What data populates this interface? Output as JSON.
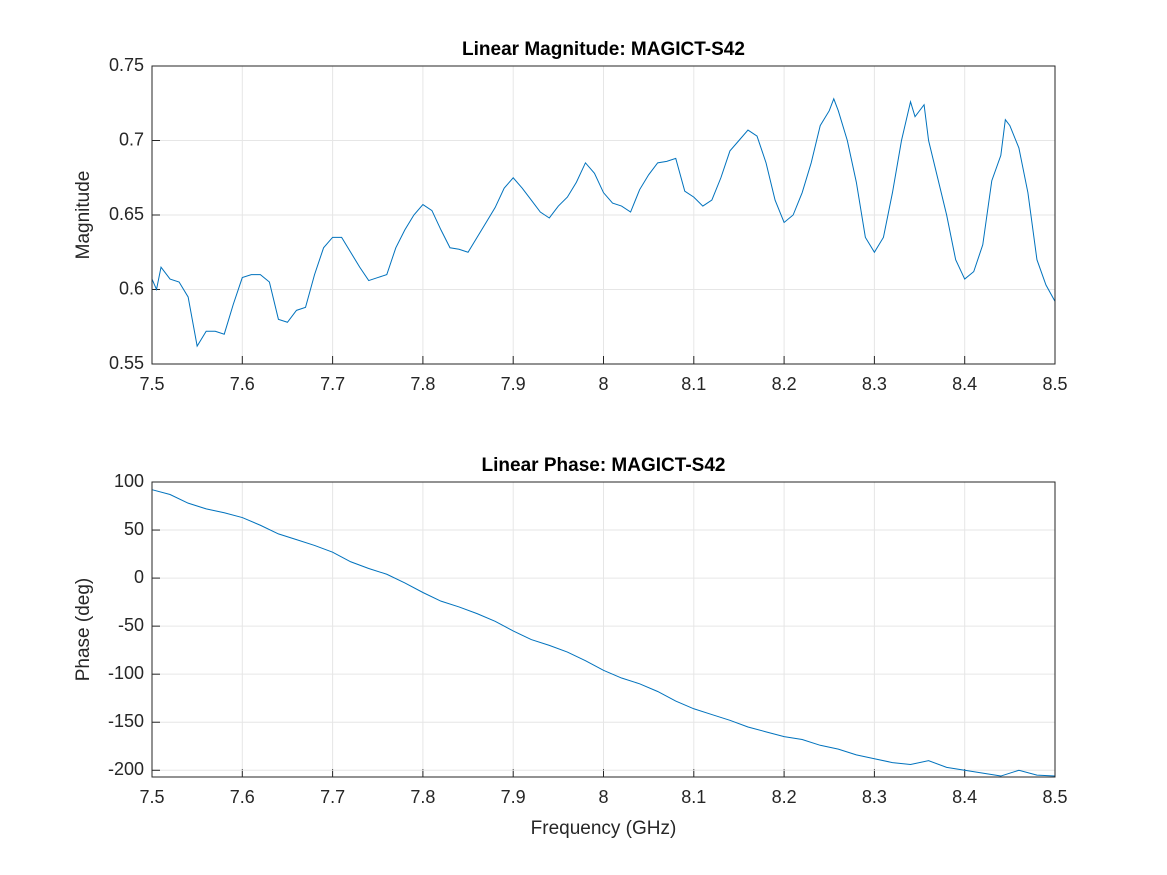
{
  "chart_data": [
    {
      "type": "line",
      "title": "Linear Magnitude: MAGICT-S42",
      "ylabel": "Magnitude",
      "color": "#0072bd",
      "grid": true,
      "x": [
        7.5,
        7.505,
        7.51,
        7.52,
        7.53,
        7.54,
        7.55,
        7.56,
        7.57,
        7.58,
        7.59,
        7.6,
        7.61,
        7.62,
        7.63,
        7.64,
        7.65,
        7.66,
        7.67,
        7.68,
        7.69,
        7.7,
        7.71,
        7.72,
        7.73,
        7.74,
        7.75,
        7.76,
        7.77,
        7.78,
        7.79,
        7.8,
        7.81,
        7.82,
        7.83,
        7.84,
        7.85,
        7.86,
        7.87,
        7.88,
        7.89,
        7.9,
        7.91,
        7.92,
        7.93,
        7.94,
        7.95,
        7.96,
        7.97,
        7.98,
        7.99,
        8.0,
        8.01,
        8.02,
        8.03,
        8.04,
        8.05,
        8.06,
        8.07,
        8.08,
        8.09,
        8.1,
        8.11,
        8.12,
        8.13,
        8.14,
        8.15,
        8.16,
        8.17,
        8.18,
        8.19,
        8.2,
        8.21,
        8.22,
        8.23,
        8.24,
        8.25,
        8.255,
        8.26,
        8.27,
        8.28,
        8.29,
        8.3,
        8.31,
        8.32,
        8.33,
        8.34,
        8.345,
        8.355,
        8.36,
        8.37,
        8.38,
        8.39,
        8.4,
        8.41,
        8.42,
        8.43,
        8.44,
        8.445,
        8.45,
        8.46,
        8.47,
        8.48,
        8.49,
        8.5
      ],
      "values": [
        0.607,
        0.6,
        0.615,
        0.607,
        0.605,
        0.595,
        0.562,
        0.572,
        0.572,
        0.57,
        0.59,
        0.608,
        0.61,
        0.61,
        0.605,
        0.58,
        0.578,
        0.586,
        0.588,
        0.61,
        0.628,
        0.635,
        0.635,
        0.625,
        0.615,
        0.606,
        0.608,
        0.61,
        0.628,
        0.64,
        0.65,
        0.657,
        0.653,
        0.64,
        0.628,
        0.627,
        0.625,
        0.635,
        0.645,
        0.655,
        0.668,
        0.675,
        0.668,
        0.66,
        0.652,
        0.648,
        0.656,
        0.662,
        0.672,
        0.685,
        0.678,
        0.665,
        0.658,
        0.656,
        0.652,
        0.667,
        0.677,
        0.685,
        0.686,
        0.688,
        0.666,
        0.662,
        0.656,
        0.66,
        0.675,
        0.693,
        0.7,
        0.707,
        0.703,
        0.685,
        0.66,
        0.645,
        0.65,
        0.665,
        0.685,
        0.71,
        0.72,
        0.728,
        0.72,
        0.7,
        0.672,
        0.635,
        0.625,
        0.635,
        0.665,
        0.7,
        0.726,
        0.716,
        0.724,
        0.7,
        0.675,
        0.65,
        0.62,
        0.607,
        0.612,
        0.63,
        0.673,
        0.69,
        0.714,
        0.71,
        0.695,
        0.665,
        0.62,
        0.603,
        0.592
      ],
      "xlim": [
        7.5,
        8.5
      ],
      "xticks": [
        7.5,
        7.6,
        7.7,
        7.8,
        7.9,
        8,
        8.1,
        8.2,
        8.3,
        8.4,
        8.5
      ],
      "ylim": [
        0.55,
        0.75
      ],
      "yticks": [
        0.55,
        0.6,
        0.65,
        0.7,
        0.75
      ]
    },
    {
      "type": "line",
      "title": "Linear Phase: MAGICT-S42",
      "xlabel": "Frequency (GHz)",
      "ylabel": "Phase (deg)",
      "color": "#0072bd",
      "grid": true,
      "x": [
        7.5,
        7.52,
        7.54,
        7.56,
        7.58,
        7.6,
        7.62,
        7.64,
        7.66,
        7.68,
        7.7,
        7.72,
        7.74,
        7.76,
        7.78,
        7.8,
        7.82,
        7.84,
        7.86,
        7.88,
        7.9,
        7.92,
        7.94,
        7.96,
        7.98,
        8.0,
        8.02,
        8.04,
        8.06,
        8.08,
        8.1,
        8.12,
        8.14,
        8.16,
        8.18,
        8.2,
        8.22,
        8.24,
        8.26,
        8.28,
        8.3,
        8.32,
        8.34,
        8.36,
        8.38,
        8.4,
        8.42,
        8.44,
        8.46,
        8.48,
        8.5
      ],
      "values": [
        92,
        87,
        78,
        72,
        68,
        63,
        55,
        46,
        40,
        34,
        27,
        17,
        10,
        4,
        -5,
        -15,
        -24,
        -30,
        -37,
        -45,
        -55,
        -64,
        -70,
        -77,
        -86,
        -96,
        -104,
        -110,
        -118,
        -128,
        -136,
        -142,
        -148,
        -155,
        -160,
        -165,
        -168,
        -174,
        -178,
        -184,
        -188,
        -192,
        -194,
        -190,
        -197,
        -200,
        -203,
        -206,
        -200,
        -205,
        -206
      ],
      "xlim": [
        7.5,
        8.5
      ],
      "xticks": [
        7.5,
        7.6,
        7.7,
        7.8,
        7.9,
        8,
        8.1,
        8.2,
        8.3,
        8.4,
        8.5
      ],
      "ylim": [
        -207,
        100
      ],
      "yticks": [
        -200,
        -150,
        -100,
        -50,
        0,
        50,
        100
      ]
    }
  ]
}
